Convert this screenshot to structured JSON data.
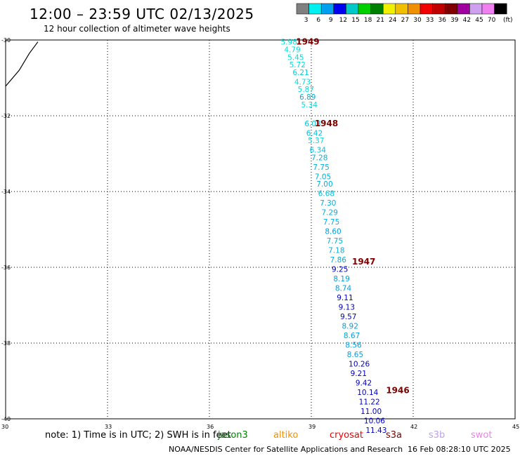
{
  "title": "12:00 – 23:59 UTC 02/13/2025",
  "subtitle": "12 hour collection of altimeter wave heights",
  "colorbar": {
    "unit": "(ft)",
    "bins": [
      {
        "label": "3",
        "color": "#808080"
      },
      {
        "label": "6",
        "color": "#00f0f0"
      },
      {
        "label": "9",
        "color": "#00a0f0"
      },
      {
        "label": "12",
        "color": "#0000f0"
      },
      {
        "label": "15",
        "color": "#00c8c8"
      },
      {
        "label": "18",
        "color": "#00d000"
      },
      {
        "label": "21",
        "color": "#008000"
      },
      {
        "label": "24",
        "color": "#f0f000"
      },
      {
        "label": "27",
        "color": "#f0c000"
      },
      {
        "label": "30",
        "color": "#f09000"
      },
      {
        "label": "33",
        "color": "#f00000"
      },
      {
        "label": "36",
        "color": "#c00000"
      },
      {
        "label": "39",
        "color": "#800000"
      },
      {
        "label": "42",
        "color": "#a000a0"
      },
      {
        "label": "45",
        "color": "#d0a0f0"
      },
      {
        "label": "70",
        "color": "#f080f0"
      },
      {
        "label": "",
        "color": "#000000"
      }
    ]
  },
  "map": {
    "lon_range": [
      30,
      45
    ],
    "lat_range": [
      -40,
      -30
    ],
    "lon_ticks": [
      "30",
      "33",
      "36",
      "39",
      "42",
      "45"
    ],
    "lat_ticks": [
      "-30",
      "-32",
      "-34",
      "-36",
      "-38",
      "-40"
    ],
    "coastline": [
      [
        30.0,
        -31.22
      ],
      [
        30.4,
        -30.8
      ],
      [
        30.7,
        -30.35
      ],
      [
        30.95,
        -30.05
      ]
    ],
    "time_labels": [
      {
        "text": "1949",
        "lon": 38.55,
        "lat": -30.05
      },
      {
        "text": "1948",
        "lon": 39.1,
        "lat": -32.2
      },
      {
        "text": "1947",
        "lon": 40.2,
        "lat": -35.85
      },
      {
        "text": "1946",
        "lon": 41.2,
        "lat": -39.25
      }
    ],
    "time_label_color": "#800000",
    "observations": [
      {
        "v": "5.98",
        "lon": 38.1,
        "lat": -30.05,
        "c": "#00e0e0"
      },
      {
        "v": "4.79",
        "lon": 38.2,
        "lat": -30.25,
        "c": "#00e0e0"
      },
      {
        "v": "5.45",
        "lon": 38.3,
        "lat": -30.45,
        "c": "#00e0e0"
      },
      {
        "v": "5.72",
        "lon": 38.35,
        "lat": -30.65,
        "c": "#00e0e0"
      },
      {
        "v": "6.21",
        "lon": 38.45,
        "lat": -30.85,
        "c": "#00d0e0"
      },
      {
        "v": "4.73",
        "lon": 38.5,
        "lat": -31.1,
        "c": "#00e0e0"
      },
      {
        "v": "5.87",
        "lon": 38.6,
        "lat": -31.3,
        "c": "#00e0e0"
      },
      {
        "v": "6.89",
        "lon": 38.65,
        "lat": -31.5,
        "c": "#00b0e0"
      },
      {
        "v": "5.34",
        "lon": 38.7,
        "lat": -31.7,
        "c": "#00e0e0"
      },
      {
        "v": "6.03",
        "lon": 38.8,
        "lat": -32.2,
        "c": "#00c0e0"
      },
      {
        "v": "6.42",
        "lon": 38.85,
        "lat": -32.45,
        "c": "#00c0e0"
      },
      {
        "v": "5.37",
        "lon": 38.9,
        "lat": -32.65,
        "c": "#00e0e0"
      },
      {
        "v": "6.34",
        "lon": 38.95,
        "lat": -32.9,
        "c": "#00c0e0"
      },
      {
        "v": "7.28",
        "lon": 39.0,
        "lat": -33.1,
        "c": "#00b0e0"
      },
      {
        "v": "7.75",
        "lon": 39.05,
        "lat": -33.35,
        "c": "#00b0e0"
      },
      {
        "v": "7.05",
        "lon": 39.1,
        "lat": -33.6,
        "c": "#00b0e0"
      },
      {
        "v": "7.00",
        "lon": 39.15,
        "lat": -33.8,
        "c": "#00b0e0"
      },
      {
        "v": "6.68",
        "lon": 39.2,
        "lat": -34.05,
        "c": "#00c0e0"
      },
      {
        "v": "7.30",
        "lon": 39.25,
        "lat": -34.3,
        "c": "#00b0e0"
      },
      {
        "v": "7.29",
        "lon": 39.3,
        "lat": -34.55,
        "c": "#00b0e0"
      },
      {
        "v": "7.75",
        "lon": 39.35,
        "lat": -34.8,
        "c": "#00b0e0"
      },
      {
        "v": "8.60",
        "lon": 39.4,
        "lat": -35.05,
        "c": "#00a0e0"
      },
      {
        "v": "7.75",
        "lon": 39.45,
        "lat": -35.3,
        "c": "#00b0e0"
      },
      {
        "v": "7.18",
        "lon": 39.5,
        "lat": -35.55,
        "c": "#00b0e0"
      },
      {
        "v": "7.86",
        "lon": 39.55,
        "lat": -35.8,
        "c": "#00b0e0"
      },
      {
        "v": "9.25",
        "lon": 39.6,
        "lat": -36.05,
        "c": "#0000c0"
      },
      {
        "v": "8.19",
        "lon": 39.65,
        "lat": -36.3,
        "c": "#00a0e0"
      },
      {
        "v": "8.74",
        "lon": 39.7,
        "lat": -36.55,
        "c": "#00a0e0"
      },
      {
        "v": "9.11",
        "lon": 39.75,
        "lat": -36.8,
        "c": "#0000c0"
      },
      {
        "v": "9.13",
        "lon": 39.8,
        "lat": -37.05,
        "c": "#0000c0"
      },
      {
        "v": "9.57",
        "lon": 39.85,
        "lat": -37.3,
        "c": "#0000c0"
      },
      {
        "v": "8.92",
        "lon": 39.9,
        "lat": -37.55,
        "c": "#00a0e0"
      },
      {
        "v": "8.67",
        "lon": 39.95,
        "lat": -37.8,
        "c": "#00a0e0"
      },
      {
        "v": "8.56",
        "lon": 40.0,
        "lat": -38.05,
        "c": "#00a0e0"
      },
      {
        "v": "8.65",
        "lon": 40.05,
        "lat": -38.3,
        "c": "#00a0e0"
      },
      {
        "v": "10.26",
        "lon": 40.1,
        "lat": -38.55,
        "c": "#0000c0"
      },
      {
        "v": "9.21",
        "lon": 40.15,
        "lat": -38.8,
        "c": "#0000c0"
      },
      {
        "v": "9.42",
        "lon": 40.3,
        "lat": -39.05,
        "c": "#0000c0"
      },
      {
        "v": "10.14",
        "lon": 40.35,
        "lat": -39.3,
        "c": "#0000c0"
      },
      {
        "v": "11.22",
        "lon": 40.4,
        "lat": -39.55,
        "c": "#0000c0"
      },
      {
        "v": "11.00",
        "lon": 40.45,
        "lat": -39.8,
        "c": "#0000c0"
      },
      {
        "v": "10.06",
        "lon": 40.55,
        "lat": -40.05,
        "c": "#0000c0"
      },
      {
        "v": "11.43",
        "lon": 40.6,
        "lat": -40.3,
        "c": "#0000c0"
      }
    ]
  },
  "note": "note: 1) Time is in UTC; 2) SWH is in feet",
  "satellites": [
    {
      "name": "jason3",
      "color": "#008000"
    },
    {
      "name": "altiko",
      "color": "#f09000"
    },
    {
      "name": "cryosat",
      "color": "#f00000"
    },
    {
      "name": "s3a",
      "color": "#800000"
    },
    {
      "name": "s3b",
      "color": "#c0a0f0"
    },
    {
      "name": "swot",
      "color": "#f080f0"
    }
  ],
  "credit": "NOAA/NESDIS Center for Satellite Applications and Research",
  "credit_time": "16 Feb 08:28:10 UTC 2025"
}
